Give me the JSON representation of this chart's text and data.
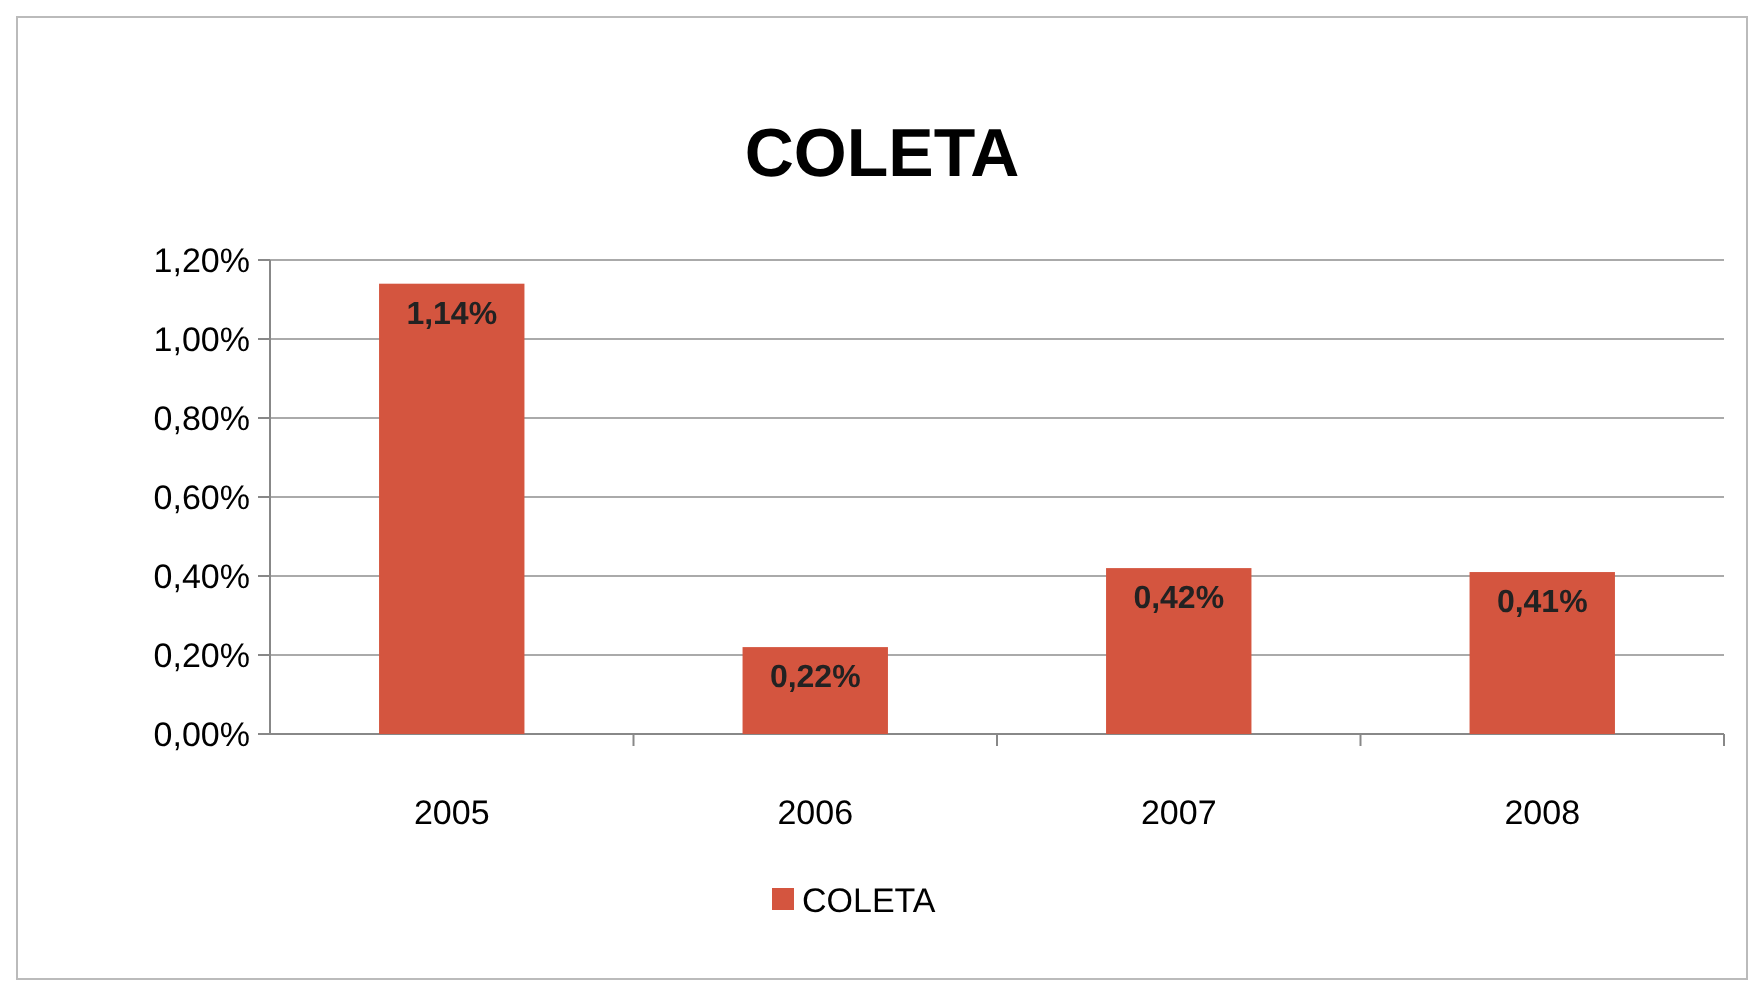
{
  "chart_data": {
    "type": "bar",
    "title": "COLETA",
    "categories": [
      "2005",
      "2006",
      "2007",
      "2008"
    ],
    "series": [
      {
        "name": "COLETA",
        "color": "#d4553f",
        "values": [
          1.14,
          0.22,
          0.42,
          0.41
        ],
        "value_labels": [
          "1,14%",
          "0,22%",
          "0,42%",
          "0,41%"
        ]
      }
    ],
    "ylim": [
      0,
      1.2
    ],
    "yticks": [
      {
        "value": 0,
        "label": "0,00%"
      },
      {
        "value": 0.2,
        "label": "0,20%"
      },
      {
        "value": 0.4,
        "label": "0,40%"
      },
      {
        "value": 0.6,
        "label": "0,60%"
      },
      {
        "value": 0.8,
        "label": "0,80%"
      },
      {
        "value": 1,
        "label": "1,00%"
      },
      {
        "value": 1.2,
        "label": "1,20%"
      }
    ],
    "grid": "y",
    "legend": "bottom"
  }
}
